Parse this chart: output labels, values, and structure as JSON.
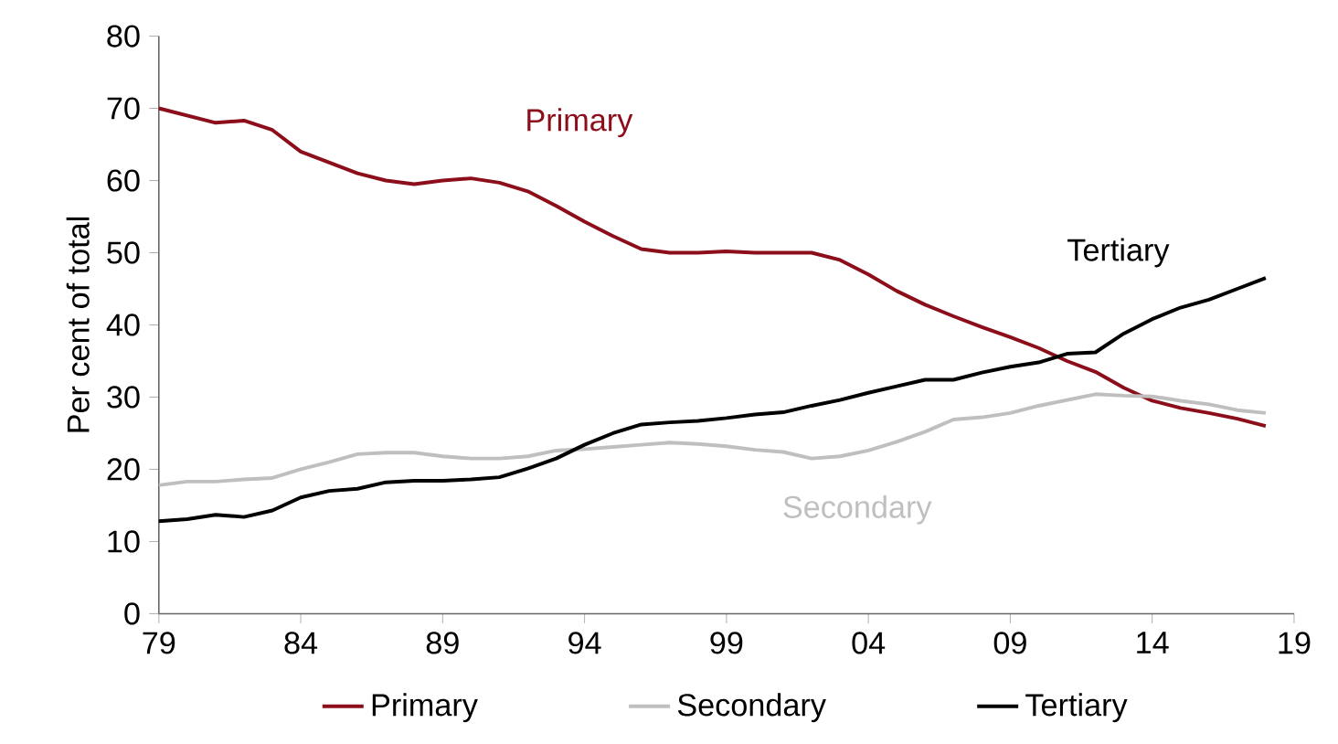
{
  "chart_data": {
    "type": "line",
    "ylabel": "Per cent of total",
    "x": [
      1979,
      1980,
      1981,
      1982,
      1983,
      1984,
      1985,
      1986,
      1987,
      1988,
      1989,
      1990,
      1991,
      1992,
      1993,
      1994,
      1995,
      1996,
      1997,
      1998,
      1999,
      2000,
      2001,
      2002,
      2003,
      2004,
      2005,
      2006,
      2007,
      2008,
      2009,
      2010,
      2011,
      2012,
      2013,
      2014,
      2015,
      2016,
      2017,
      2018
    ],
    "series": [
      {
        "name": "Primary",
        "color": "#8b0e1a",
        "values": [
          70,
          69,
          68,
          68.3,
          67,
          64,
          62.5,
          61,
          60,
          59.5,
          60,
          60.3,
          59.7,
          58.5,
          56.5,
          54.3,
          52.3,
          50.5,
          50,
          50,
          50.2,
          50,
          50,
          50,
          49,
          47,
          44.7,
          42.8,
          41.2,
          39.7,
          38.3,
          36.8,
          35,
          33.5,
          31.3,
          29.5,
          28.5,
          27.8,
          27,
          26
        ]
      },
      {
        "name": "Secondary",
        "color": "#bfbfbf",
        "values": [
          17.8,
          18.3,
          18.3,
          18.6,
          18.8,
          20,
          21,
          22.1,
          22.3,
          22.3,
          21.8,
          21.5,
          21.5,
          21.8,
          22.6,
          22.8,
          23.1,
          23.4,
          23.7,
          23.5,
          23.2,
          22.7,
          22.4,
          21.5,
          21.8,
          22.6,
          23.8,
          25.2,
          26.9,
          27.2,
          27.8,
          28.8,
          29.6,
          30.4,
          30.2,
          30.1,
          29.5,
          29,
          28.2,
          27.8
        ]
      },
      {
        "name": "Tertiary",
        "color": "#000000",
        "values": [
          12.8,
          13.1,
          13.7,
          13.4,
          14.3,
          16.1,
          17,
          17.3,
          18.2,
          18.4,
          18.4,
          18.6,
          18.9,
          20.1,
          21.5,
          23.4,
          25,
          26.2,
          26.5,
          26.7,
          27.1,
          27.6,
          27.9,
          28.8,
          29.6,
          30.6,
          31.5,
          32.4,
          32.4,
          33.4,
          34.2,
          34.8,
          36,
          36.2,
          38.8,
          40.8,
          42.4,
          43.5,
          45,
          46.5
        ]
      }
    ],
    "annotations": [
      "Primary",
      "Secondary",
      "Tertiary"
    ],
    "xlim": [
      1979,
      2019
    ],
    "ylim": [
      0,
      80
    ],
    "xticks": [
      {
        "value": 1979,
        "label": "79"
      },
      {
        "value": 1984,
        "label": "84"
      },
      {
        "value": 1989,
        "label": "89"
      },
      {
        "value": 1994,
        "label": "94"
      },
      {
        "value": 1999,
        "label": "99"
      },
      {
        "value": 2004,
        "label": "04"
      },
      {
        "value": 2009,
        "label": "09"
      },
      {
        "value": 2014,
        "label": "14"
      },
      {
        "value": 2019,
        "label": "19"
      }
    ],
    "yticks": [
      0,
      10,
      20,
      30,
      40,
      50,
      60,
      70,
      80
    ],
    "grid": false,
    "legend": "bottom",
    "marker": "none",
    "line_style": "solid"
  }
}
